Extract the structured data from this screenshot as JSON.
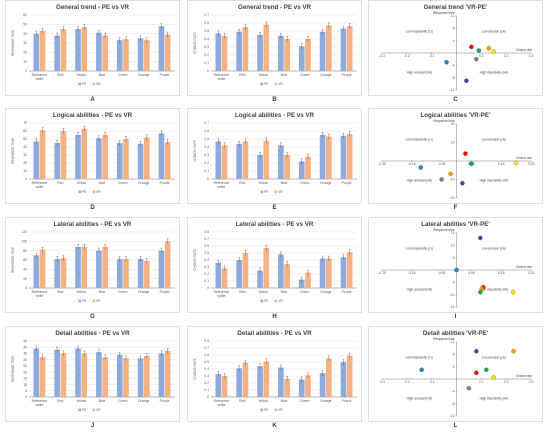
{
  "colors": {
    "pe": "#8faadc",
    "vr": "#f4b183",
    "grid": "#d9d9d9",
    "axis": "#7f7f7f",
    "frame": "#bfbfbf",
    "err": "#404040"
  },
  "panel_letters": [
    "A",
    "B",
    "C",
    "D",
    "E",
    "F",
    "G",
    "H",
    "I",
    "J",
    "K",
    "L"
  ],
  "chart_data": [
    {
      "id": "A",
      "type": "bar",
      "title": "General trend - PE vs VR",
      "categories": [
        "Reference white",
        "Red",
        "Yellow",
        "Blue",
        "Green",
        "Orange",
        "Purple"
      ],
      "ylabel": "RESPONSE TIME",
      "ylim": [
        0,
        60
      ],
      "yticks": [
        0,
        10,
        20,
        30,
        40,
        50,
        60
      ],
      "series": [
        {
          "name": "PE",
          "values": [
            40,
            38,
            45,
            41,
            33,
            35,
            48
          ]
        },
        {
          "name": "VR",
          "values": [
            43,
            45,
            47,
            38,
            34,
            33,
            39
          ]
        }
      ]
    },
    {
      "id": "B",
      "type": "bar",
      "title": "General trend - PE vs VR",
      "categories": [
        "Reference white",
        "Red",
        "Yellow",
        "Blue",
        "Green",
        "Orange",
        "Purple"
      ],
      "ylabel": "CHOICE RATE",
      "ylim": [
        0,
        0.7
      ],
      "yticks": [
        0,
        0.1,
        0.2,
        0.3,
        0.4,
        0.5,
        0.6,
        0.7
      ],
      "series": [
        {
          "name": "PE",
          "values": [
            0.47,
            0.49,
            0.45,
            0.44,
            0.31,
            0.49,
            0.53
          ]
        },
        {
          "name": "VR",
          "values": [
            0.44,
            0.55,
            0.58,
            0.4,
            0.4,
            0.57,
            0.56
          ]
        }
      ]
    },
    {
      "id": "C",
      "type": "scatter",
      "title": "General trend 'VR-PE'",
      "xlim": [
        -0.3,
        0.3
      ],
      "ylim": [
        -12,
        12
      ],
      "xticks": [
        -0.3,
        -0.2,
        -0.1,
        0.1,
        0.2,
        0.3
      ],
      "yticks": [
        -12,
        -8,
        -4,
        4,
        8,
        12
      ],
      "top_label": "Response time",
      "right_label": "Choice rate",
      "quadrants": [
        "Low impulsivity (LI)",
        "Low arousal (LA)",
        "High arousal (HA)",
        "High impulsivity (HI)"
      ],
      "points": [
        {
          "color": "#ff0000",
          "x": 0.06,
          "y": 2.0
        },
        {
          "color": "#f4a000",
          "x": 0.13,
          "y": 1.5
        },
        {
          "color": "#f2e600",
          "x": 0.15,
          "y": 0.5
        },
        {
          "color": "#00b050",
          "x": 0.09,
          "y": 0.8
        },
        {
          "color": "#808080",
          "x": 0.08,
          "y": -2.0
        },
        {
          "color": "#2e86c1",
          "x": -0.04,
          "y": -3.0
        },
        {
          "color": "#7030a0",
          "x": 0.04,
          "y": -9.0
        }
      ]
    },
    {
      "id": "D",
      "type": "bar",
      "title": "Logical abilities - PE vs VR",
      "categories": [
        "Reference white",
        "Red",
        "Yellow",
        "Blue",
        "Green",
        "Orange",
        "Purple"
      ],
      "ylabel": "RESPONSE TIME",
      "ylim": [
        0,
        70
      ],
      "yticks": [
        0,
        10,
        20,
        30,
        40,
        50,
        60,
        70
      ],
      "series": [
        {
          "name": "PE",
          "values": [
            47,
            45,
            55,
            51,
            45,
            44,
            57
          ]
        },
        {
          "name": "VR",
          "values": [
            61,
            60,
            63,
            55,
            50,
            52,
            46
          ]
        }
      ]
    },
    {
      "id": "E",
      "type": "bar",
      "title": "Logical abilities - PE vs VR",
      "categories": [
        "Reference white",
        "Red",
        "Yellow",
        "Blue",
        "Green",
        "Orange",
        "Purple"
      ],
      "ylabel": "CHOICE RATE",
      "ylim": [
        0,
        0.7
      ],
      "yticks": [
        0,
        0.1,
        0.2,
        0.3,
        0.4,
        0.5,
        0.6,
        0.7
      ],
      "series": [
        {
          "name": "PE",
          "values": [
            0.47,
            0.44,
            0.3,
            0.42,
            0.22,
            0.55,
            0.54
          ]
        },
        {
          "name": "VR",
          "values": [
            0.42,
            0.47,
            0.48,
            0.3,
            0.28,
            0.53,
            0.56
          ]
        }
      ]
    },
    {
      "id": "F",
      "type": "scatter",
      "title": "Logical abilities 'VR-PE'",
      "xlim": [
        -0.25,
        0.25
      ],
      "ylim": [
        -20,
        20
      ],
      "xticks": [
        -0.25,
        -0.15,
        -0.05,
        0.05,
        0.15,
        0.25
      ],
      "yticks": [
        -20,
        -10,
        10,
        20
      ],
      "top_label": "Response time",
      "right_label": "Choice rate",
      "quadrants": [
        "Low impulsivity (LI)",
        "Low arousal (LA)",
        "High arousal (HA)",
        "High impulsivity (HI)"
      ],
      "points": [
        {
          "color": "#ff0000",
          "x": 0.03,
          "y": 4.0
        },
        {
          "color": "#f2e600",
          "x": 0.2,
          "y": -1.0
        },
        {
          "color": "#00b050",
          "x": 0.05,
          "y": -1.5
        },
        {
          "color": "#2e86c1",
          "x": -0.12,
          "y": -3.5
        },
        {
          "color": "#f4a000",
          "x": -0.02,
          "y": -7.0
        },
        {
          "color": "#808080",
          "x": -0.05,
          "y": -10.0
        },
        {
          "color": "#7030a0",
          "x": 0.02,
          "y": -12.0
        }
      ]
    },
    {
      "id": "G",
      "type": "bar",
      "title": "Lateral abilities - PE vs VR",
      "categories": [
        "Reference white",
        "Red",
        "Yellow",
        "Blue",
        "Green",
        "Orange",
        "Purple"
      ],
      "ylabel": "RESPONSE TIME",
      "ylim": [
        0,
        120
      ],
      "yticks": [
        0,
        20,
        40,
        60,
        80,
        100,
        120
      ],
      "series": [
        {
          "name": "PE",
          "values": [
            70,
            62,
            88,
            80,
            62,
            62,
            80
          ]
        },
        {
          "name": "VR",
          "values": [
            82,
            64,
            88,
            88,
            62,
            58,
            100
          ]
        }
      ]
    },
    {
      "id": "H",
      "type": "bar",
      "title": "Lateral abilities - PE vs VR",
      "categories": [
        "Reference white",
        "Red",
        "Yellow",
        "Blue",
        "Green",
        "Orange",
        "Purple"
      ],
      "ylabel": "CHOICE RATE",
      "ylim": [
        0,
        0.8
      ],
      "yticks": [
        0,
        0.1,
        0.2,
        0.3,
        0.4,
        0.5,
        0.6,
        0.7,
        0.8
      ],
      "series": [
        {
          "name": "PE",
          "values": [
            0.36,
            0.4,
            0.25,
            0.48,
            0.12,
            0.42,
            0.44
          ]
        },
        {
          "name": "VR",
          "values": [
            0.28,
            0.5,
            0.57,
            0.34,
            0.22,
            0.42,
            0.51
          ]
        }
      ]
    },
    {
      "id": "I",
      "type": "scatter",
      "title": "Lateral abilities 'VR-PE'",
      "xlim": [
        -0.25,
        0.25
      ],
      "ylim": [
        -15,
        15
      ],
      "xticks": [
        -0.25,
        -0.15,
        -0.05,
        0.05,
        0.15,
        0.25
      ],
      "yticks": [
        -15,
        -10,
        -5,
        5,
        10,
        15
      ],
      "top_label": "Response time",
      "right_label": "Choice rate",
      "quadrants": [
        "Low impulsivity (LI)",
        "Low arousal (LA)",
        "High arousal (HA)",
        "High impulsivity (HI)"
      ],
      "points": [
        {
          "color": "#7030a0",
          "x": 0.08,
          "y": 13.0
        },
        {
          "color": "#2e86c1",
          "x": 0.0,
          "y": 0.0
        },
        {
          "color": "#ff0000",
          "x": 0.09,
          "y": -7.0
        },
        {
          "color": "#f4a000",
          "x": 0.085,
          "y": -7.5
        },
        {
          "color": "#00b050",
          "x": 0.08,
          "y": -9.0
        },
        {
          "color": "#f2e600",
          "x": 0.19,
          "y": -9.0
        }
      ]
    },
    {
      "id": "J",
      "type": "bar",
      "title": "Detail abilities - PE vs VR",
      "categories": [
        "Reference white",
        "Red",
        "Yellow",
        "Blue",
        "Green",
        "Orange",
        "Purple"
      ],
      "ylabel": "RESPONSE TIME",
      "ylim": [
        0,
        45
      ],
      "yticks": [
        0,
        5,
        10,
        15,
        20,
        25,
        30,
        35,
        40,
        45
      ],
      "series": [
        {
          "name": "PE",
          "values": [
            39,
            38,
            39,
            36,
            34,
            31,
            35
          ]
        },
        {
          "name": "VR",
          "values": [
            32,
            35,
            35,
            32,
            31,
            33,
            37
          ]
        }
      ]
    },
    {
      "id": "K",
      "type": "bar",
      "title": "Detail abilities - PE vs VR",
      "categories": [
        "Reference white",
        "Red",
        "Yellow",
        "Blue",
        "Green",
        "Orange",
        "Purple"
      ],
      "ylabel": "CHOICE RATE",
      "ylim": [
        0,
        0.8
      ],
      "yticks": [
        0,
        0.1,
        0.2,
        0.3,
        0.4,
        0.5,
        0.6,
        0.7,
        0.8
      ],
      "series": [
        {
          "name": "PE",
          "values": [
            0.33,
            0.41,
            0.44,
            0.42,
            0.25,
            0.34,
            0.5
          ]
        },
        {
          "name": "VR",
          "values": [
            0.3,
            0.49,
            0.51,
            0.26,
            0.31,
            0.55,
            0.59
          ]
        }
      ]
    },
    {
      "id": "L",
      "type": "scatter",
      "title": "Detail abilities 'VR-PE'",
      "xlim": [
        -0.3,
        0.3
      ],
      "ylim": [
        -12,
        12
      ],
      "xticks": [
        -0.3,
        -0.2,
        -0.1,
        0.1,
        0.2,
        0.3
      ],
      "yticks": [
        -12,
        -8,
        -4,
        4,
        8,
        12
      ],
      "top_label": "Response time",
      "right_label": "Choice rate",
      "quadrants": [
        "Low impulsivity (LI)",
        "Low arousal (LA)",
        "High arousal (HA)",
        "High impulsivity (HI)"
      ],
      "points": [
        {
          "color": "#7030a0",
          "x": 0.08,
          "y": 9.0
        },
        {
          "color": "#f4a000",
          "x": 0.23,
          "y": 9.0
        },
        {
          "color": "#2e86c1",
          "x": -0.14,
          "y": 3.0
        },
        {
          "color": "#ff0000",
          "x": 0.08,
          "y": 2.0
        },
        {
          "color": "#00b050",
          "x": 0.12,
          "y": 3.0
        },
        {
          "color": "#f2e600",
          "x": 0.15,
          "y": 0.5
        },
        {
          "color": "#808080",
          "x": 0.05,
          "y": -3.0
        }
      ]
    }
  ]
}
